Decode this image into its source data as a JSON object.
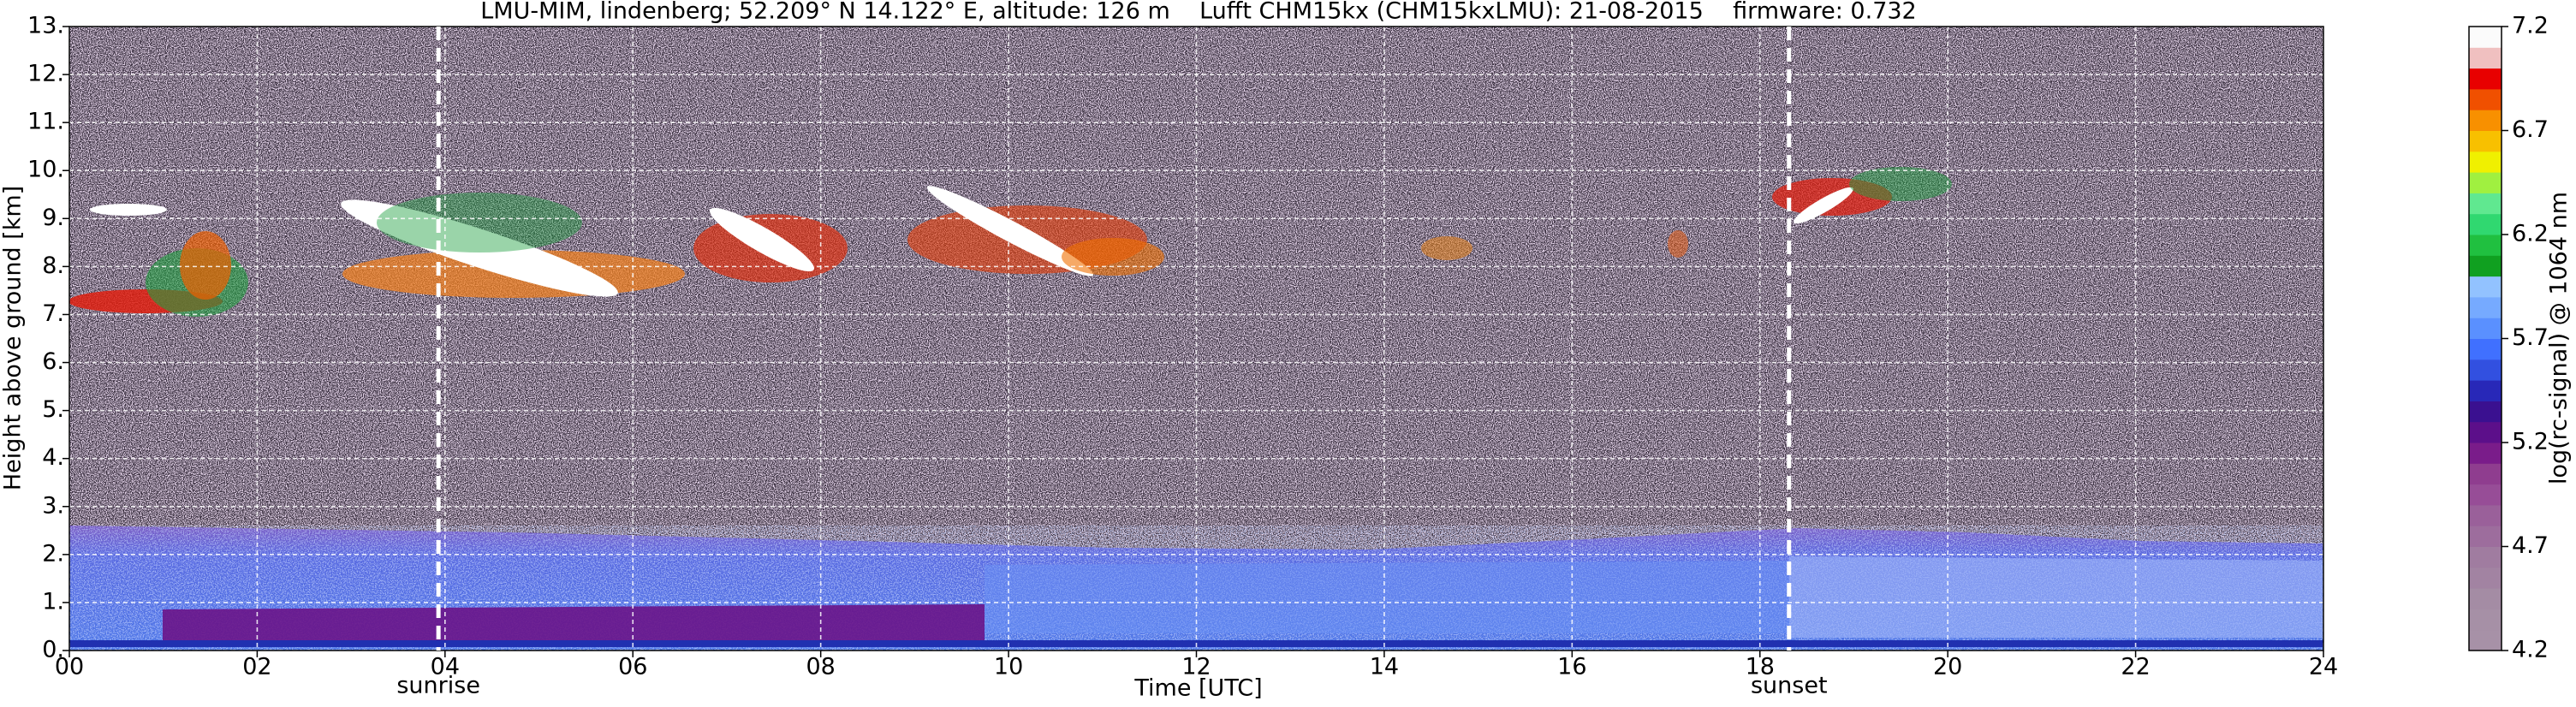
{
  "chart_data": {
    "type": "heatmap",
    "title": "LMU-MIM, lindenberg; 52.209° N 14.122° E, altitude: 126 m    Lufft CHM15kx (CHM15kxLMU): 21-08-2015    firmware: 0.732",
    "xlabel": "Time [UTC]",
    "ylabel": "Height above ground [km]",
    "xlim": [
      0,
      24
    ],
    "xticks": [
      {
        "value": 0,
        "label": "00"
      },
      {
        "value": 2,
        "label": "02"
      },
      {
        "value": 4,
        "label": "04"
      },
      {
        "value": 6,
        "label": "06"
      },
      {
        "value": 8,
        "label": "08"
      },
      10,
      12,
      14,
      16,
      18,
      20,
      22,
      24
    ],
    "ylim": [
      0,
      13
    ],
    "yticks": [
      {
        "value": 0,
        "label": "0."
      },
      {
        "value": 1,
        "label": "1."
      },
      {
        "value": 2,
        "label": "2."
      },
      {
        "value": 3,
        "label": "3."
      },
      {
        "value": 4,
        "label": "4."
      },
      {
        "value": 5,
        "label": "5."
      },
      {
        "value": 6,
        "label": "6."
      },
      {
        "value": 7,
        "label": "7."
      },
      {
        "value": 8,
        "label": "8."
      },
      {
        "value": 9,
        "label": "9."
      },
      {
        "value": 10,
        "label": "10."
      },
      {
        "value": 11,
        "label": "11."
      },
      {
        "value": 12,
        "label": "12."
      },
      {
        "value": 13,
        "label": "13."
      }
    ],
    "grid": true,
    "annotations": [
      {
        "text": "sunrise",
        "x": 3.93
      },
      {
        "text": "sunset",
        "x": 18.31
      }
    ],
    "colorbar": {
      "label": "log(rc-signal) @ 1064 nm",
      "lim": [
        4.2,
        7.2
      ],
      "ticks": [
        4.2,
        4.7,
        5.2,
        5.7,
        6.2,
        6.7,
        7.2
      ],
      "colors": [
        "#a791a7",
        "#a690a6",
        "#a48ca4",
        "#a283a2",
        "#a07ca0",
        "#9d6d9d",
        "#9a609a",
        "#974d97",
        "#8f3d8f",
        "#7a1c8a",
        "#5c0f8a",
        "#3a1090",
        "#2828b8",
        "#3250e0",
        "#4070ff",
        "#5a90ff",
        "#76aaff",
        "#92c2ff",
        "#10a020",
        "#20c040",
        "#30d870",
        "#60e890",
        "#a0f040",
        "#f0f000",
        "#f8c000",
        "#f89000",
        "#f05000",
        "#e80000",
        "#f0c0c0",
        "#fbfbfb"
      ]
    }
  }
}
